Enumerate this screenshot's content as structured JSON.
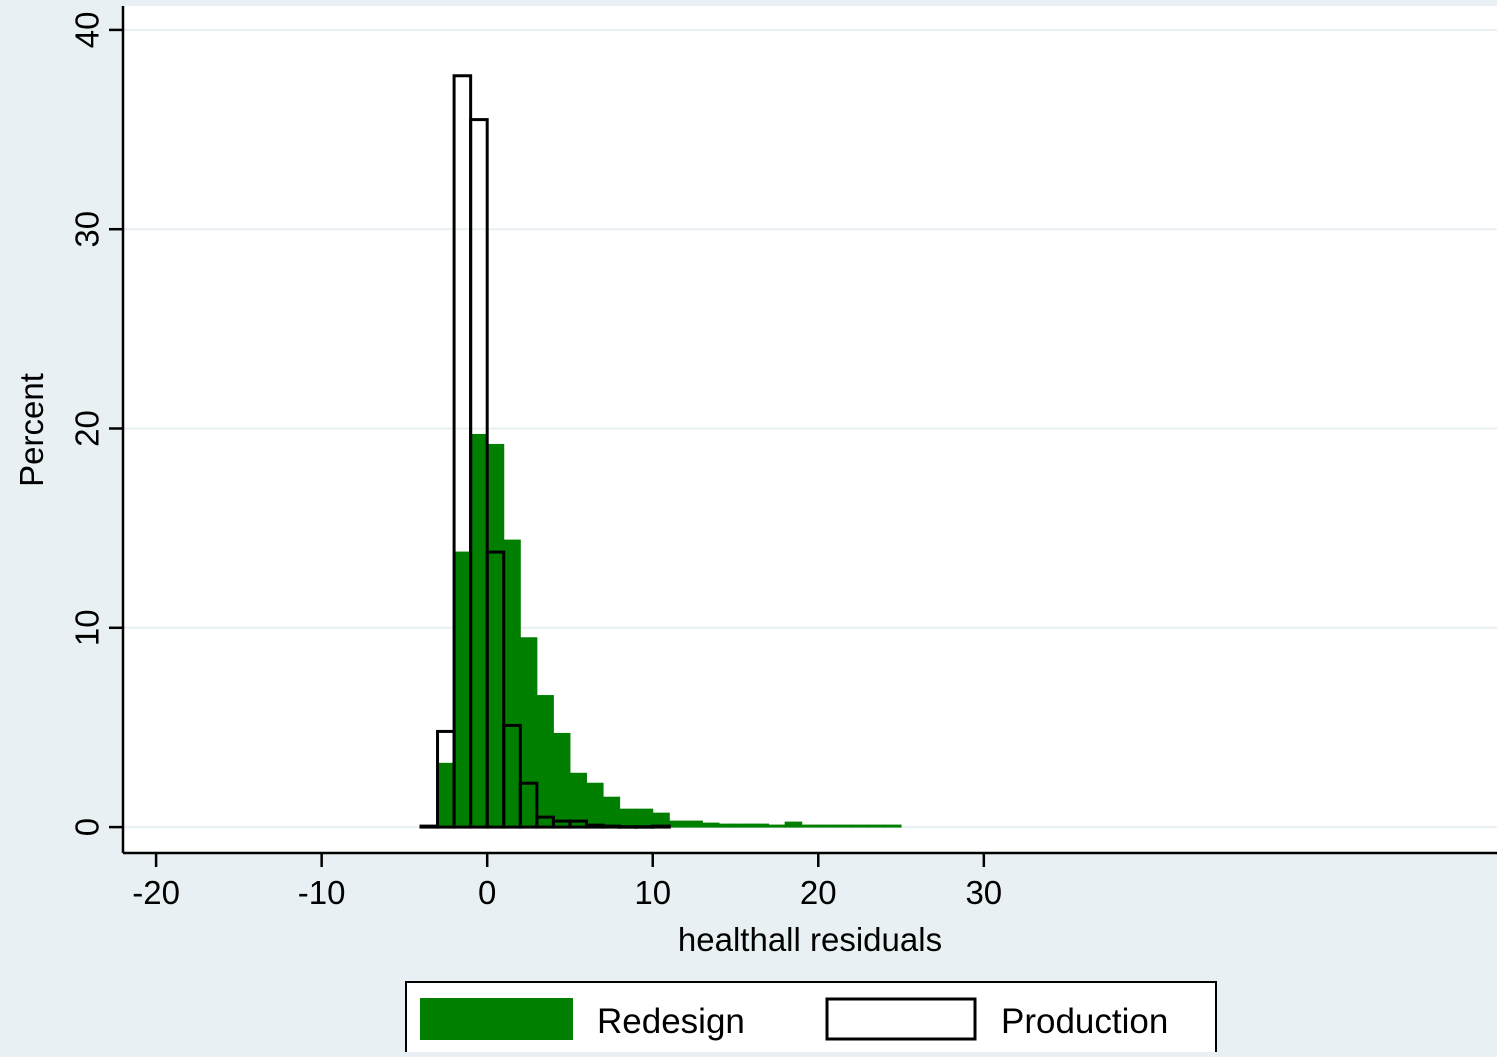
{
  "chart_data": {
    "type": "bar",
    "xlabel": "healthall residuals",
    "ylabel": "Percent",
    "xlim": [
      -22,
      61
    ],
    "ylim": [
      -1.3,
      41.2
    ],
    "xticks": [
      -20,
      -10,
      0,
      10,
      20,
      30
    ],
    "xtick_labels": [
      "-20",
      "-10",
      "0",
      "10",
      "20",
      "30"
    ],
    "yticks": [
      0,
      10,
      20,
      30,
      40
    ],
    "ytick_labels": [
      "0",
      "10",
      "20",
      "30",
      "40"
    ],
    "grid": true,
    "legend_position": "bottom",
    "bin_width": 1,
    "series": [
      {
        "name": "Redesign",
        "style": "filled",
        "color": "#007f00",
        "bin_starts": [
          -3,
          -2,
          -1,
          0,
          1,
          2,
          3,
          4,
          5,
          6,
          7,
          8,
          9,
          10,
          11,
          12,
          13,
          14,
          15,
          16,
          17,
          18,
          19,
          20,
          21,
          22,
          23,
          24
        ],
        "values": [
          3.2,
          13.8,
          19.7,
          19.2,
          14.4,
          9.5,
          6.6,
          4.7,
          2.7,
          2.2,
          1.5,
          0.9,
          0.9,
          0.7,
          0.3,
          0.3,
          0.2,
          0.15,
          0.15,
          0.15,
          0.1,
          0.25,
          0.1,
          0.1,
          0.1,
          0.1,
          0.1,
          0.1
        ]
      },
      {
        "name": "Production",
        "style": "outline",
        "color": "#000000",
        "bin_starts": [
          -4,
          -3,
          -2,
          -1,
          0,
          1,
          2,
          3,
          4,
          5,
          6,
          7,
          8,
          9,
          10
        ],
        "values": [
          0.05,
          4.8,
          37.7,
          35.5,
          13.8,
          5.1,
          2.2,
          0.5,
          0.3,
          0.3,
          0.1,
          0.05,
          0.02,
          0.02,
          0.05
        ]
      }
    ]
  },
  "legend": {
    "items": [
      {
        "label": "Redesign",
        "fill": "#007f00",
        "stroke": "#007f00"
      },
      {
        "label": "Production",
        "fill": "#ffffff",
        "stroke": "#000000"
      }
    ]
  },
  "colors": {
    "background": "#e9f0f3",
    "plot_area": "#ffffff",
    "gridline": "#e9f0f3",
    "axis": "#000000"
  }
}
